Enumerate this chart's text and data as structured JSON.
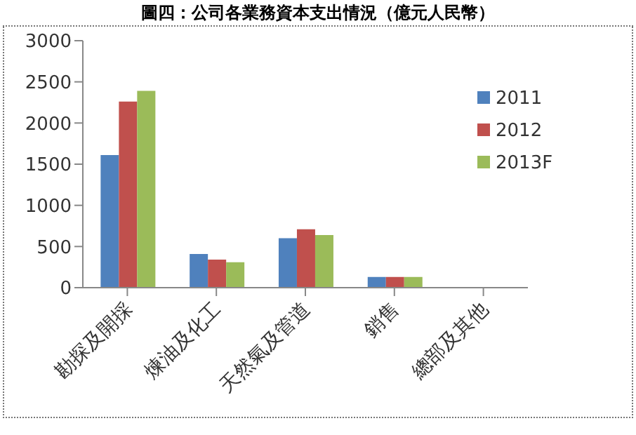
{
  "chart_data": {
    "type": "bar",
    "title": "圖四：公司各業務資本支出情況（億元人民幣）",
    "categories": [
      "勘探及開採",
      "煉油及化工",
      "天然氣及管道",
      "銷售",
      "總部及其他"
    ],
    "series": [
      {
        "name": "2011",
        "color": "#4f81bd",
        "values": [
          1610,
          410,
          600,
          130,
          null
        ]
      },
      {
        "name": "2012",
        "color": "#c0504d",
        "values": [
          2260,
          340,
          710,
          130,
          null
        ]
      },
      {
        "name": "2013F",
        "color": "#9bbb59",
        "values": [
          2390,
          310,
          640,
          130,
          null
        ]
      }
    ],
    "ylim": [
      0,
      3000
    ],
    "yticks": [
      0,
      500,
      1000,
      1500,
      2000,
      2500,
      3000
    ],
    "grid": false,
    "legend": "top right"
  }
}
